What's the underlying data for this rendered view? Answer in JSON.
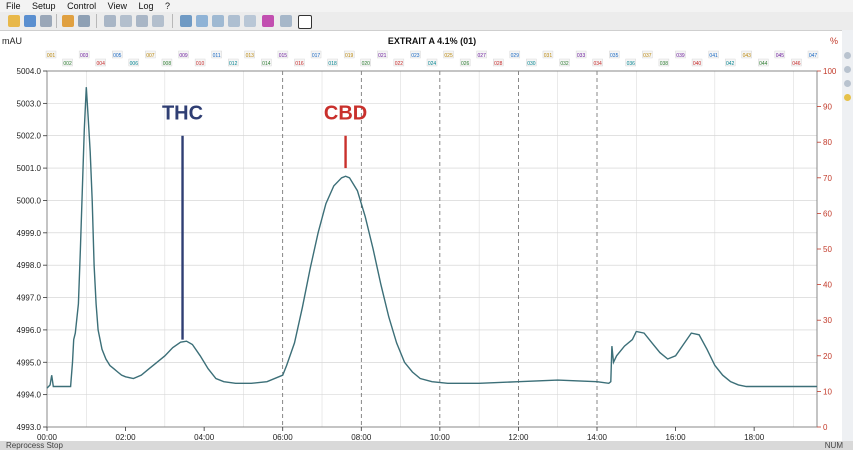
{
  "menu": [
    "File",
    "Setup",
    "Control",
    "View",
    "Log",
    "?"
  ],
  "status": {
    "left": "Reprocess Stop",
    "right": "NUM"
  },
  "colors": {
    "trace": "#3c6f78",
    "left_axis": "#222222",
    "right_axis": "#c23a2a",
    "thc": "#2f3e73",
    "cbd": "#c9302c",
    "grid": "#cfcfcf"
  },
  "chart_data": {
    "type": "line",
    "title": "EXTRAIT A 4.1% (01)",
    "ylabel": "mAU",
    "y2label": "%",
    "xlim": [
      0,
      19.6
    ],
    "ylim": [
      4993.0,
      5004.0
    ],
    "y2lim": [
      0,
      100
    ],
    "grid": "on",
    "xticks": [
      "00:00",
      "02:00",
      "04:00",
      "06:00",
      "08:00",
      "10:00",
      "12:00",
      "14:00",
      "16:00",
      "18:00"
    ],
    "yticks": [
      "4993.0",
      "4994.0",
      "4995.0",
      "4996.0",
      "4997.0",
      "4998.0",
      "4999.0",
      "5000.0",
      "5001.0",
      "5002.0",
      "5003.0",
      "5004.0"
    ],
    "y2ticks": [
      "0",
      "10",
      "20",
      "30",
      "40",
      "50",
      "60",
      "70",
      "80",
      "90",
      "100"
    ],
    "fractions": [
      "001",
      "002",
      "003",
      "004",
      "005",
      "006",
      "007",
      "008",
      "009",
      "010",
      "011",
      "012",
      "013",
      "014",
      "015",
      "016",
      "017",
      "018",
      "019",
      "020",
      "021",
      "022",
      "023",
      "024",
      "025",
      "026",
      "027",
      "028",
      "029",
      "030",
      "031",
      "032",
      "033",
      "034",
      "035",
      "036",
      "037",
      "038",
      "039",
      "040",
      "041",
      "042",
      "043",
      "044",
      "045",
      "046",
      "047"
    ],
    "annotations": [
      {
        "label": "THC",
        "x": 3.45,
        "y_top": 5002.0,
        "y_bottom": 4995.7
      },
      {
        "label": "CBD",
        "x": 7.6,
        "y_top": 5002.0,
        "y_bottom": 5001.0
      }
    ],
    "series": [
      {
        "x": [
          0.0,
          0.08,
          0.12,
          0.16,
          0.2,
          0.6,
          0.65,
          0.68,
          0.72,
          0.8,
          0.85,
          0.95,
          1.0,
          1.05,
          1.1,
          1.15,
          1.2,
          1.25,
          1.3,
          1.4,
          1.5,
          1.6,
          1.7,
          1.8,
          1.9,
          2.0,
          2.2,
          2.4,
          2.6,
          2.8,
          3.0,
          3.2,
          3.4,
          3.55,
          3.7,
          3.9,
          4.1,
          4.3,
          4.5,
          4.8,
          5.2,
          5.6,
          6.0,
          6.1,
          6.3,
          6.5,
          6.7,
          6.9,
          7.1,
          7.3,
          7.5,
          7.6,
          7.7,
          7.9,
          8.1,
          8.3,
          8.5,
          8.7,
          8.9,
          9.1,
          9.3,
          9.5,
          9.8,
          10.2,
          11.0,
          12.0,
          13.0,
          14.0,
          14.3,
          14.35,
          14.38,
          14.42,
          14.5,
          14.7,
          14.9,
          15.0,
          15.2,
          15.4,
          15.6,
          15.8,
          16.0,
          16.2,
          16.4,
          16.6,
          16.8,
          17.0,
          17.2,
          17.4,
          17.6,
          17.8,
          18.0,
          18.5,
          19.0,
          19.6
        ],
        "y": [
          4994.2,
          4994.3,
          4994.6,
          4994.25,
          4994.25,
          4994.25,
          4995.0,
          4995.7,
          4995.9,
          4996.8,
          4998.5,
          5002.2,
          5003.5,
          5002.5,
          5001.5,
          5000.0,
          4998.0,
          4996.8,
          4996.0,
          4995.4,
          4995.1,
          4994.9,
          4994.8,
          4994.7,
          4994.6,
          4994.55,
          4994.5,
          4994.6,
          4994.8,
          4995.0,
          4995.2,
          4995.45,
          4995.62,
          4995.65,
          4995.55,
          4995.2,
          4994.8,
          4994.5,
          4994.4,
          4994.35,
          4994.35,
          4994.4,
          4994.6,
          4994.9,
          4995.6,
          4996.7,
          4997.9,
          4999.0,
          4999.9,
          5000.45,
          5000.7,
          5000.75,
          5000.7,
          5000.3,
          4999.5,
          4998.5,
          4997.4,
          4996.4,
          4995.6,
          4995.0,
          4994.7,
          4994.5,
          4994.4,
          4994.35,
          4994.35,
          4994.4,
          4994.45,
          4994.4,
          4994.35,
          4994.4,
          4995.5,
          4995.0,
          4995.2,
          4995.5,
          4995.7,
          4995.95,
          4995.9,
          4995.6,
          4995.3,
          4995.1,
          4995.2,
          4995.55,
          4995.9,
          4995.85,
          4995.4,
          4994.9,
          4994.6,
          4994.4,
          4994.3,
          4994.25,
          4994.25,
          4994.25,
          4994.25,
          4994.25
        ]
      }
    ]
  }
}
